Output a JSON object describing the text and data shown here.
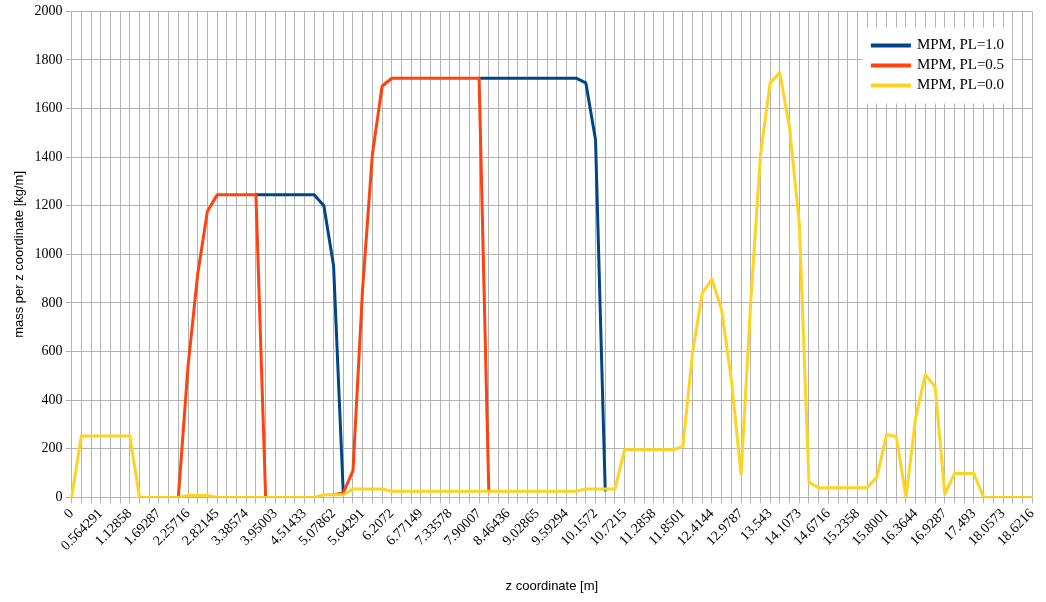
{
  "chart_data": {
    "type": "line",
    "xlabel": "z coordinate [m]",
    "ylabel": "mass per z coordinate [kg/m]",
    "categories": [
      "0",
      null,
      null,
      "0.564291",
      null,
      null,
      "1.12858",
      null,
      null,
      "1.69287",
      null,
      null,
      "2.25716",
      null,
      null,
      "2.82145",
      null,
      null,
      "3.38574",
      null,
      null,
      "3.95003",
      null,
      null,
      "4.51433",
      null,
      null,
      "5.07862",
      null,
      null,
      "5.64291",
      null,
      null,
      "6.2072",
      null,
      null,
      "6.77149",
      null,
      null,
      "7.33578",
      null,
      null,
      "7.90007",
      null,
      null,
      "8.46436",
      null,
      null,
      "9.02865",
      null,
      null,
      "9.59294",
      null,
      null,
      "10.1572",
      null,
      null,
      "10.7215",
      null,
      null,
      "11.2858",
      null,
      null,
      "11.8501",
      null,
      null,
      "12.4144",
      null,
      null,
      "12.9787",
      null,
      null,
      "13.543",
      null,
      null,
      "14.1073",
      null,
      null,
      "14.6716",
      null,
      null,
      "15.2358",
      null,
      null,
      "15.8001",
      null,
      null,
      "16.3644",
      null,
      null,
      "16.9287",
      null,
      null,
      "17.493",
      null,
      null,
      "18.0573",
      null,
      null,
      "18.6216"
    ],
    "series": [
      {
        "name": "MPM, PL=1.0",
        "color": "#004586",
        "values": [
          null,
          null,
          null,
          null,
          null,
          null,
          null,
          null,
          null,
          null,
          null,
          null,
          null,
          null,
          null,
          null,
          null,
          null,
          null,
          1245,
          1245,
          1245,
          1245,
          1245,
          1245,
          1245,
          1200,
          954,
          18,
          null,
          null,
          null,
          null,
          null,
          null,
          null,
          null,
          null,
          null,
          null,
          null,
          null,
          1725,
          1725,
          1725,
          1725,
          1725,
          1725,
          1725,
          1725,
          1725,
          1725,
          1725,
          1706,
          1472,
          30,
          null,
          null,
          null,
          null,
          null,
          null,
          null,
          null,
          null,
          null,
          null,
          null,
          null,
          null,
          null,
          null,
          null,
          null,
          null,
          null,
          null,
          null,
          null,
          null,
          null,
          null,
          null,
          null,
          null,
          null,
          null,
          null,
          null,
          null,
          null,
          null,
          null,
          null,
          null,
          null,
          null,
          null,
          null,
          null
        ]
      },
      {
        "name": "MPM, PL=0.5",
        "color": "#ff420e",
        "values": [
          null,
          null,
          null,
          null,
          null,
          null,
          null,
          null,
          null,
          null,
          null,
          0,
          540,
          920,
          1178,
          1245,
          1245,
          1245,
          1245,
          1245,
          0,
          null,
          null,
          null,
          null,
          null,
          null,
          11,
          18,
          110,
          862,
          1411,
          1692,
          1725,
          1725,
          1725,
          1725,
          1725,
          1725,
          1725,
          1725,
          1725,
          1725,
          25,
          null,
          null,
          null,
          null,
          null,
          null,
          null,
          null,
          null,
          null,
          null,
          null,
          null,
          null,
          null,
          null,
          null,
          null,
          null,
          null,
          null,
          null,
          null,
          null,
          null,
          null,
          null,
          null,
          null,
          null,
          null,
          null,
          null,
          null,
          null,
          null,
          null,
          null,
          null,
          null,
          null,
          null,
          null,
          null,
          null,
          null,
          null,
          null,
          null,
          null,
          null,
          null,
          null,
          null,
          null,
          null
        ]
      },
      {
        "name": "MPM, PL=0.0",
        "color": "#ffd320",
        "values": [
          0,
          253,
          253,
          253,
          253,
          253,
          253,
          0,
          0,
          0,
          0,
          0,
          8,
          8,
          8,
          0,
          0,
          0,
          0,
          0,
          0,
          0,
          0,
          0,
          0,
          0,
          11,
          11,
          11,
          35,
          35,
          35,
          35,
          25,
          25,
          25,
          25,
          25,
          25,
          25,
          25,
          25,
          25,
          25,
          25,
          25,
          25,
          25,
          25,
          25,
          25,
          25,
          25,
          35,
          35,
          35,
          35,
          196,
          196,
          196,
          196,
          196,
          196,
          210,
          596,
          841,
          898,
          771,
          484,
          95,
          806,
          1409,
          1706,
          1748,
          1521,
          1129,
          63,
          40,
          40,
          40,
          40,
          40,
          40,
          84,
          259,
          251,
          0,
          330,
          505,
          456,
          14,
          98,
          98,
          98,
          0,
          0,
          0,
          0,
          0,
          0
        ]
      }
    ],
    "ylim": [
      0,
      2000
    ],
    "yticks": [
      0,
      200,
      400,
      600,
      800,
      1000,
      1200,
      1400,
      1600,
      1800,
      2000
    ],
    "grid": true,
    "legend": "top right",
    "marker": "none",
    "line_style": "solid"
  }
}
